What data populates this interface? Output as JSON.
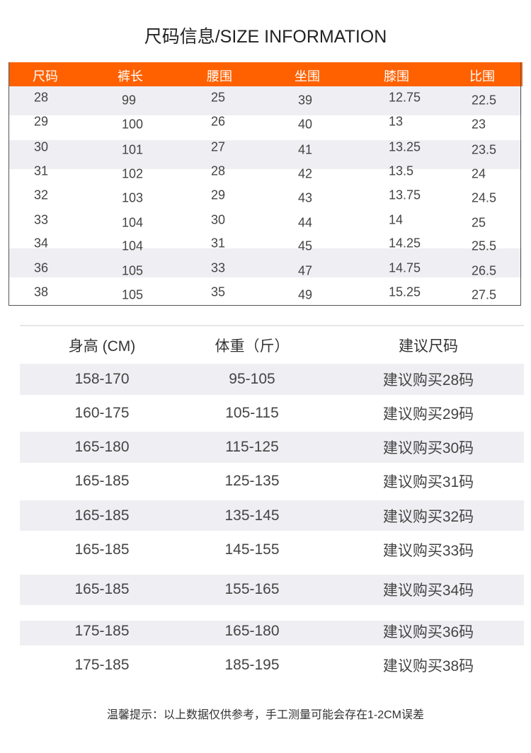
{
  "title": "尺码信息/SIZE INFORMATION",
  "size_table": {
    "header_color": "#ff6100",
    "columns": [
      "尺码",
      "裤长",
      "腰围",
      "坐围",
      "膝围",
      "比围"
    ],
    "rows": [
      [
        "28",
        "99",
        "25",
        "39",
        "12.75",
        "22.5"
      ],
      [
        "29",
        "100",
        "26",
        "40",
        "13",
        "23"
      ],
      [
        "30",
        "101",
        "27",
        "41",
        "13.25",
        "23.5"
      ],
      [
        "31",
        "102",
        "28",
        "42",
        "13.5",
        "24"
      ],
      [
        "32",
        "103",
        "29",
        "43",
        "13.75",
        "24.5"
      ],
      [
        "33",
        "104",
        "30",
        "44",
        "14",
        "25"
      ],
      [
        "34",
        "104",
        "31",
        "45",
        "14.25",
        "25.5"
      ],
      [
        "36",
        "105",
        "33",
        "47",
        "14.75",
        "26.5"
      ],
      [
        "38",
        "105",
        "35",
        "49",
        "15.25",
        "27.5"
      ]
    ]
  },
  "recommend_table": {
    "columns": [
      "身高 (CM)",
      "体重（斤）",
      "建议尺码"
    ],
    "rows": [
      [
        "158-170",
        "95-105",
        "建议购买28码"
      ],
      [
        "160-175",
        "105-115",
        "建议购买29码"
      ],
      [
        "165-180",
        "115-125",
        "建议购买30码"
      ],
      [
        "165-185",
        "125-135",
        "建议购买31码"
      ],
      [
        "165-185",
        "135-145",
        "建议购买32码"
      ],
      [
        "165-185",
        "145-155",
        "建议购买33码"
      ],
      [
        "165-185",
        "155-165",
        "建议购买34码"
      ],
      [
        "175-185",
        "165-180",
        "建议购买36码"
      ],
      [
        "175-185",
        "185-195",
        "建议购买38码"
      ]
    ]
  },
  "note": "温馨提示：以上数据仅供参考，手工测量可能会存在1-2CM误差"
}
